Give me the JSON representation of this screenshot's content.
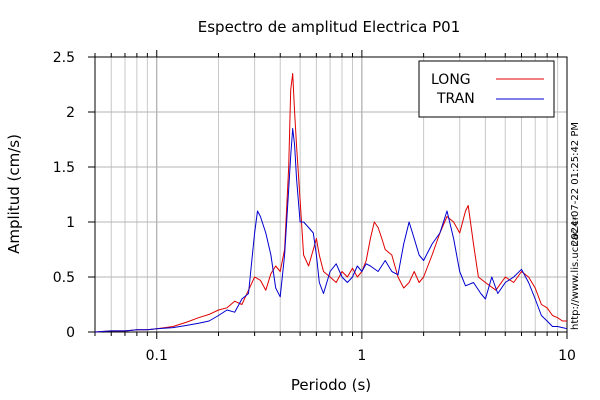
{
  "chart_data": {
    "type": "line",
    "title": "Espectro de amplitud Electrica P01",
    "xlabel": "Periodo (s)",
    "ylabel": "Amplitud (cm/s)",
    "x_scale": "log",
    "xlim": [
      0.05,
      10
    ],
    "ylim": [
      0,
      2.5
    ],
    "x_ticks": [
      0.1,
      1,
      10
    ],
    "x_tick_labels": [
      "0.1",
      "1",
      "10"
    ],
    "y_ticks": [
      0,
      0.5,
      1,
      1.5,
      2,
      2.5
    ],
    "y_tick_labels": [
      "0",
      "0.5",
      "1",
      "1.5",
      "2",
      "2.5"
    ],
    "grid": true,
    "legend_position": "top-right",
    "side_texts": {
      "timestamp": "2024-07-22 01:25:42 PM",
      "url": "http://www.lis.ucr.ac.cr"
    },
    "series": [
      {
        "name": "LONG",
        "color": "#e00000",
        "points": [
          [
            0.05,
            0.0
          ],
          [
            0.06,
            0.01
          ],
          [
            0.07,
            0.01
          ],
          [
            0.08,
            0.02
          ],
          [
            0.09,
            0.02
          ],
          [
            0.1,
            0.03
          ],
          [
            0.12,
            0.05
          ],
          [
            0.14,
            0.09
          ],
          [
            0.16,
            0.13
          ],
          [
            0.18,
            0.16
          ],
          [
            0.2,
            0.2
          ],
          [
            0.22,
            0.22
          ],
          [
            0.24,
            0.28
          ],
          [
            0.26,
            0.25
          ],
          [
            0.28,
            0.38
          ],
          [
            0.3,
            0.5
          ],
          [
            0.32,
            0.47
          ],
          [
            0.34,
            0.38
          ],
          [
            0.36,
            0.53
          ],
          [
            0.38,
            0.6
          ],
          [
            0.4,
            0.55
          ],
          [
            0.42,
            0.75
          ],
          [
            0.44,
            1.5
          ],
          [
            0.45,
            2.2
          ],
          [
            0.46,
            2.35
          ],
          [
            0.47,
            2.0
          ],
          [
            0.48,
            1.7
          ],
          [
            0.5,
            1.2
          ],
          [
            0.52,
            0.7
          ],
          [
            0.55,
            0.6
          ],
          [
            0.58,
            0.75
          ],
          [
            0.6,
            0.85
          ],
          [
            0.62,
            0.7
          ],
          [
            0.65,
            0.55
          ],
          [
            0.7,
            0.5
          ],
          [
            0.75,
            0.45
          ],
          [
            0.8,
            0.55
          ],
          [
            0.85,
            0.5
          ],
          [
            0.9,
            0.58
          ],
          [
            0.95,
            0.5
          ],
          [
            1.0,
            0.55
          ],
          [
            1.05,
            0.65
          ],
          [
            1.1,
            0.85
          ],
          [
            1.15,
            1.0
          ],
          [
            1.2,
            0.95
          ],
          [
            1.25,
            0.85
          ],
          [
            1.3,
            0.75
          ],
          [
            1.4,
            0.7
          ],
          [
            1.5,
            0.5
          ],
          [
            1.6,
            0.4
          ],
          [
            1.7,
            0.45
          ],
          [
            1.8,
            0.55
          ],
          [
            1.9,
            0.45
          ],
          [
            2.0,
            0.5
          ],
          [
            2.2,
            0.7
          ],
          [
            2.4,
            0.9
          ],
          [
            2.6,
            1.05
          ],
          [
            2.8,
            1.0
          ],
          [
            3.0,
            0.9
          ],
          [
            3.2,
            1.1
          ],
          [
            3.3,
            1.15
          ],
          [
            3.5,
            0.8
          ],
          [
            3.7,
            0.5
          ],
          [
            4.0,
            0.45
          ],
          [
            4.5,
            0.38
          ],
          [
            5.0,
            0.5
          ],
          [
            5.5,
            0.45
          ],
          [
            6.0,
            0.55
          ],
          [
            6.5,
            0.5
          ],
          [
            7.0,
            0.4
          ],
          [
            7.5,
            0.25
          ],
          [
            8.0,
            0.22
          ],
          [
            8.5,
            0.15
          ],
          [
            9.0,
            0.13
          ],
          [
            9.5,
            0.1
          ],
          [
            10.0,
            0.1
          ]
        ]
      },
      {
        "name": "TRAN",
        "color": "#0000d0",
        "points": [
          [
            0.05,
            0.0
          ],
          [
            0.06,
            0.01
          ],
          [
            0.07,
            0.01
          ],
          [
            0.08,
            0.02
          ],
          [
            0.09,
            0.02
          ],
          [
            0.1,
            0.03
          ],
          [
            0.12,
            0.04
          ],
          [
            0.14,
            0.06
          ],
          [
            0.16,
            0.08
          ],
          [
            0.18,
            0.1
          ],
          [
            0.2,
            0.15
          ],
          [
            0.22,
            0.2
          ],
          [
            0.24,
            0.18
          ],
          [
            0.26,
            0.3
          ],
          [
            0.28,
            0.35
          ],
          [
            0.3,
            0.9
          ],
          [
            0.31,
            1.1
          ],
          [
            0.32,
            1.05
          ],
          [
            0.34,
            0.9
          ],
          [
            0.36,
            0.7
          ],
          [
            0.38,
            0.4
          ],
          [
            0.4,
            0.32
          ],
          [
            0.42,
            0.7
          ],
          [
            0.44,
            1.3
          ],
          [
            0.45,
            1.6
          ],
          [
            0.46,
            1.85
          ],
          [
            0.47,
            1.7
          ],
          [
            0.48,
            1.4
          ],
          [
            0.5,
            1.0
          ],
          [
            0.52,
            1.0
          ],
          [
            0.55,
            0.95
          ],
          [
            0.58,
            0.9
          ],
          [
            0.6,
            0.7
          ],
          [
            0.62,
            0.45
          ],
          [
            0.65,
            0.35
          ],
          [
            0.7,
            0.55
          ],
          [
            0.75,
            0.62
          ],
          [
            0.8,
            0.5
          ],
          [
            0.85,
            0.45
          ],
          [
            0.9,
            0.5
          ],
          [
            0.95,
            0.6
          ],
          [
            1.0,
            0.55
          ],
          [
            1.05,
            0.62
          ],
          [
            1.1,
            0.6
          ],
          [
            1.2,
            0.55
          ],
          [
            1.3,
            0.65
          ],
          [
            1.4,
            0.55
          ],
          [
            1.5,
            0.52
          ],
          [
            1.6,
            0.8
          ],
          [
            1.7,
            1.0
          ],
          [
            1.8,
            0.85
          ],
          [
            1.9,
            0.7
          ],
          [
            2.0,
            0.65
          ],
          [
            2.2,
            0.8
          ],
          [
            2.4,
            0.9
          ],
          [
            2.6,
            1.1
          ],
          [
            2.8,
            0.85
          ],
          [
            3.0,
            0.55
          ],
          [
            3.2,
            0.42
          ],
          [
            3.5,
            0.45
          ],
          [
            3.8,
            0.35
          ],
          [
            4.0,
            0.3
          ],
          [
            4.3,
            0.5
          ],
          [
            4.6,
            0.35
          ],
          [
            5.0,
            0.45
          ],
          [
            5.5,
            0.5
          ],
          [
            6.0,
            0.57
          ],
          [
            6.5,
            0.45
          ],
          [
            7.0,
            0.3
          ],
          [
            7.5,
            0.15
          ],
          [
            8.0,
            0.1
          ],
          [
            8.5,
            0.05
          ],
          [
            9.0,
            0.05
          ],
          [
            9.5,
            0.04
          ],
          [
            10.0,
            0.03
          ]
        ]
      }
    ]
  }
}
